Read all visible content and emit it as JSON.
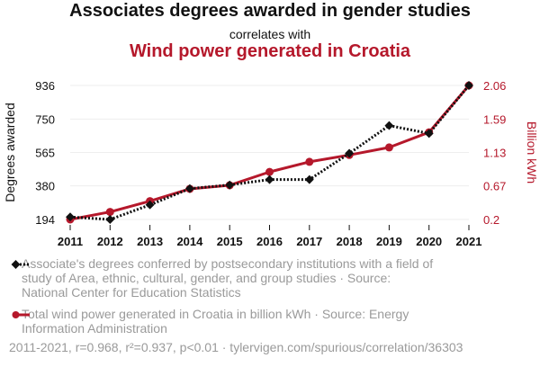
{
  "header": {
    "title": "Associates degrees awarded in gender studies",
    "subtitle": "correlates with",
    "title2": "Wind power generated in Croatia"
  },
  "legend": {
    "series1": "Associate's degrees conferred by postsecondary institutions with a field of study of Area, ethnic, cultural, gender, and group studies · Source: National Center for Education Statistics",
    "series2": "Total wind power generated in Croatia in billion kWh · Source: Energy Information Administration"
  },
  "footer": "2011-2021, r=0.968, r²=0.937, p<0.01 · tylervigen.com/spurious/correlation/36303",
  "colors": {
    "series1": "#111111",
    "series2": "#b5182b",
    "grid": "#eeeeee"
  },
  "chart_data": {
    "type": "line",
    "x": [
      2011,
      2012,
      2013,
      2014,
      2015,
      2016,
      2017,
      2018,
      2019,
      2020,
      2021
    ],
    "xticks": [
      "2011",
      "2012",
      "2013",
      "2014",
      "2015",
      "2016",
      "2017",
      "2018",
      "2019",
      "2020",
      "2021"
    ],
    "left_axis": {
      "label": "Degrees awarded",
      "ticks": [
        "194",
        "380",
        "565",
        "750",
        "936"
      ],
      "tick_values": [
        194,
        380,
        565,
        750,
        936
      ],
      "range": [
        194,
        936
      ]
    },
    "right_axis": {
      "label": "Billion kWh",
      "ticks": [
        "0.2",
        "0.67",
        "1.13",
        "1.59",
        "2.06"
      ],
      "tick_values": [
        0.2,
        0.67,
        1.13,
        1.59,
        2.06
      ],
      "range": [
        0.2,
        2.06
      ]
    },
    "series": [
      {
        "values": [
          208,
          194,
          275,
          365,
          385,
          415,
          415,
          560,
          714,
          670,
          936
        ],
        "axis": "left",
        "style": "dotted",
        "marker": "diamond"
      },
      {
        "values": [
          0.2,
          0.305,
          0.455,
          0.625,
          0.675,
          0.86,
          1.0,
          1.095,
          1.2,
          1.41,
          2.06
        ],
        "axis": "right",
        "style": "solid",
        "marker": "circle"
      }
    ],
    "grid": true
  }
}
